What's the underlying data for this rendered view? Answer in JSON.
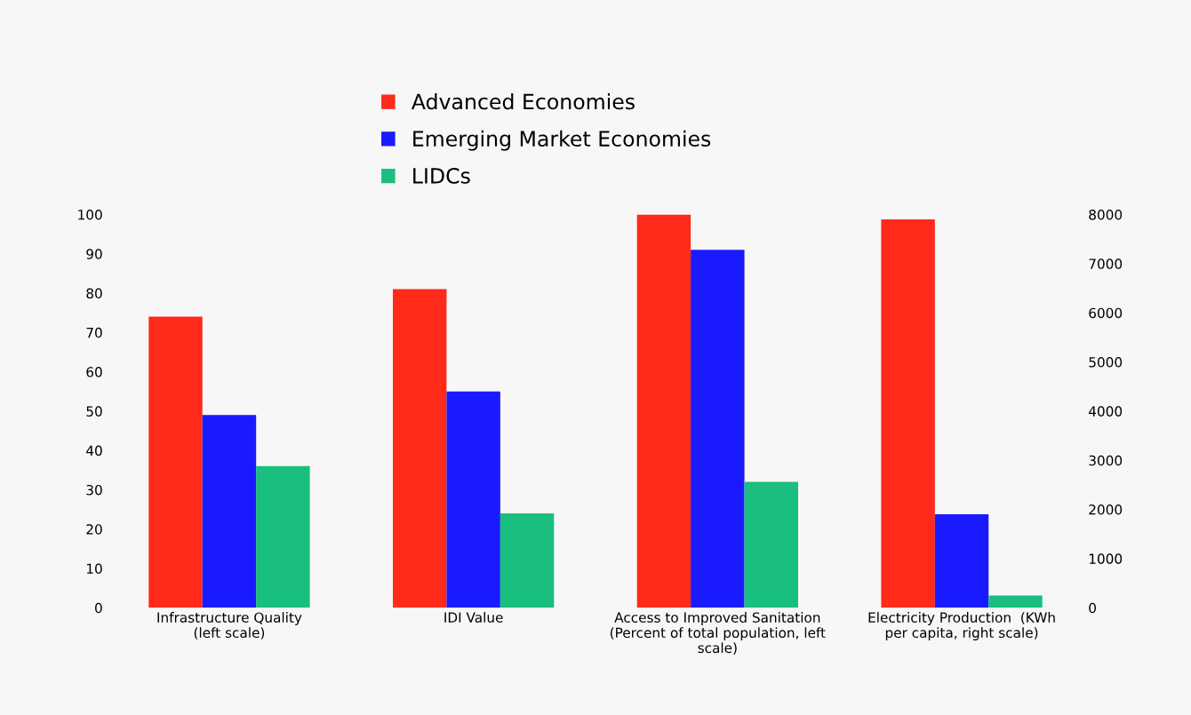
{
  "chart_data": {
    "type": "bar",
    "categories": [
      "Infrastructure Quality\n(left scale)",
      "IDI Value",
      "Access to Improved Sanitation\n(Percent of total population, left\nscale)",
      "Electricity Production  (KWh\nper capita, right scale)"
    ],
    "series": [
      {
        "name": "Advanced Economies",
        "color": "#ff2a1a",
        "values": [
          74,
          81,
          100,
          null
        ]
      },
      {
        "name": "Emerging Market Economies",
        "color": "#1a1aff",
        "values": [
          49,
          55,
          91,
          null
        ]
      },
      {
        "name": "LIDCs",
        "color": "#1abf80",
        "values": [
          36,
          24,
          32,
          null
        ]
      },
      {
        "color": "#ff2a1a",
        "axis": "y2",
        "values": [
          null,
          null,
          null,
          7900
        ]
      },
      {
        "color": "#1a1aff",
        "axis": "y2",
        "values": [
          null,
          null,
          null,
          1900
        ]
      },
      {
        "color": "#1abf80",
        "axis": "y2",
        "values": [
          null,
          null,
          null,
          250
        ]
      }
    ],
    "ylim": [
      0,
      100
    ],
    "yticks": [
      0,
      10,
      20,
      30,
      40,
      50,
      60,
      70,
      80,
      90,
      100
    ],
    "y2lim": [
      0,
      8000
    ],
    "y2ticks": [
      0,
      1000,
      2000,
      3000,
      4000,
      5000,
      6000,
      7000,
      8000
    ],
    "grid": false,
    "legend": "top"
  }
}
